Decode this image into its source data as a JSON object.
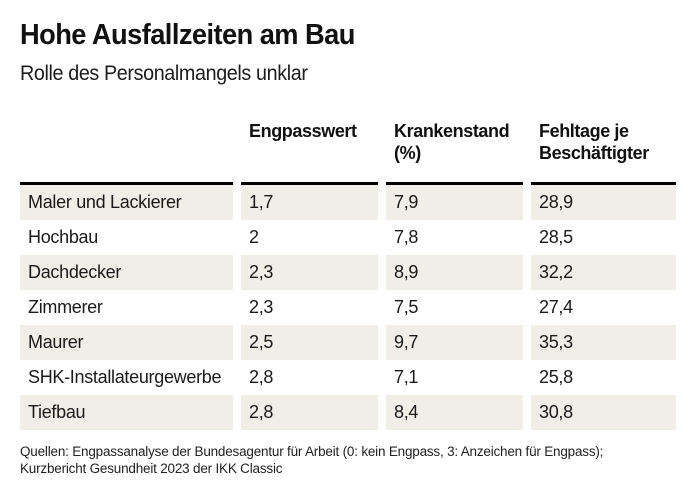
{
  "header": {
    "title": "Hohe Ausfallzeiten am Bau",
    "subtitle": "Rolle des Personalmangels unklar"
  },
  "table": {
    "col_header_keys": [
      "engpasswert",
      "krankenstand",
      "fehltage"
    ],
    "col_headers": [
      {
        "lines": [
          "Engpasswert"
        ]
      },
      {
        "lines": [
          "Krankenstand",
          "(%)"
        ]
      },
      {
        "lines": [
          "Fehltage je",
          "Beschäftigter"
        ]
      }
    ],
    "rows": [
      [
        "Maler und Lackierer",
        "1,7",
        "7,9",
        "28,9"
      ],
      [
        "Hochbau",
        "2",
        "7,8",
        "28,5"
      ],
      [
        "Dachdecker",
        "2,3",
        "8,9",
        "32,2"
      ],
      [
        "Zimmerer",
        "2,3",
        "7,5",
        "27,4"
      ],
      [
        "Maurer",
        "2,5",
        "9,7",
        "35,3"
      ],
      [
        "SHK-Installateurgewerbe",
        "2,8",
        "7,1",
        "25,8"
      ],
      [
        "Tiefbau",
        "2,8",
        "8,4",
        "30,8"
      ]
    ]
  },
  "footer": {
    "source_line1": "Quellen: Engpassanalyse der Bundesagentur für Arbeit (0: kein Engpass, 3: Anzeichen für Engpass);",
    "source_line2": "Kurzbericht Gesundheit 2023 der IKK Classic"
  },
  "colors": {
    "row_shade": "#f1eee8",
    "header_rule": "#000000",
    "text": "#1a1a1a"
  },
  "chart_data": {
    "type": "table",
    "title": "Hohe Ausfallzeiten am Bau",
    "subtitle": "Rolle des Personalmangels unklar",
    "columns": [
      "",
      "Engpasswert",
      "Krankenstand (%)",
      "Fehltage je Beschäftigter"
    ],
    "rows": [
      {
        "label": "Maler und Lackierer",
        "engpasswert": 1.7,
        "krankenstand_pct": 7.9,
        "fehltage_je_beschaeftigter": 28.9
      },
      {
        "label": "Hochbau",
        "engpasswert": 2.0,
        "krankenstand_pct": 7.8,
        "fehltage_je_beschaeftigter": 28.5
      },
      {
        "label": "Dachdecker",
        "engpasswert": 2.3,
        "krankenstand_pct": 8.9,
        "fehltage_je_beschaeftigter": 32.2
      },
      {
        "label": "Zimmerer",
        "engpasswert": 2.3,
        "krankenstand_pct": 7.5,
        "fehltage_je_beschaeftigter": 27.4
      },
      {
        "label": "Maurer",
        "engpasswert": 2.5,
        "krankenstand_pct": 9.7,
        "fehltage_je_beschaeftigter": 35.3
      },
      {
        "label": "SHK-Installateurgewerbe",
        "engpasswert": 2.8,
        "krankenstand_pct": 7.1,
        "fehltage_je_beschaeftigter": 25.8
      },
      {
        "label": "Tiefbau",
        "engpasswert": 2.8,
        "krankenstand_pct": 8.4,
        "fehltage_je_beschaeftigter": 30.8
      }
    ],
    "notes": "Quellen: Engpassanalyse der Bundesagentur für Arbeit (0: kein Engpass, 3: Anzeichen für Engpass); Kurzbericht Gesundheit 2023 der IKK Classic",
    "layout_hints": {
      "row_shading": "alternating, first row shaded",
      "grid": "off",
      "header_rule": "thick black, segmented per column"
    }
  }
}
